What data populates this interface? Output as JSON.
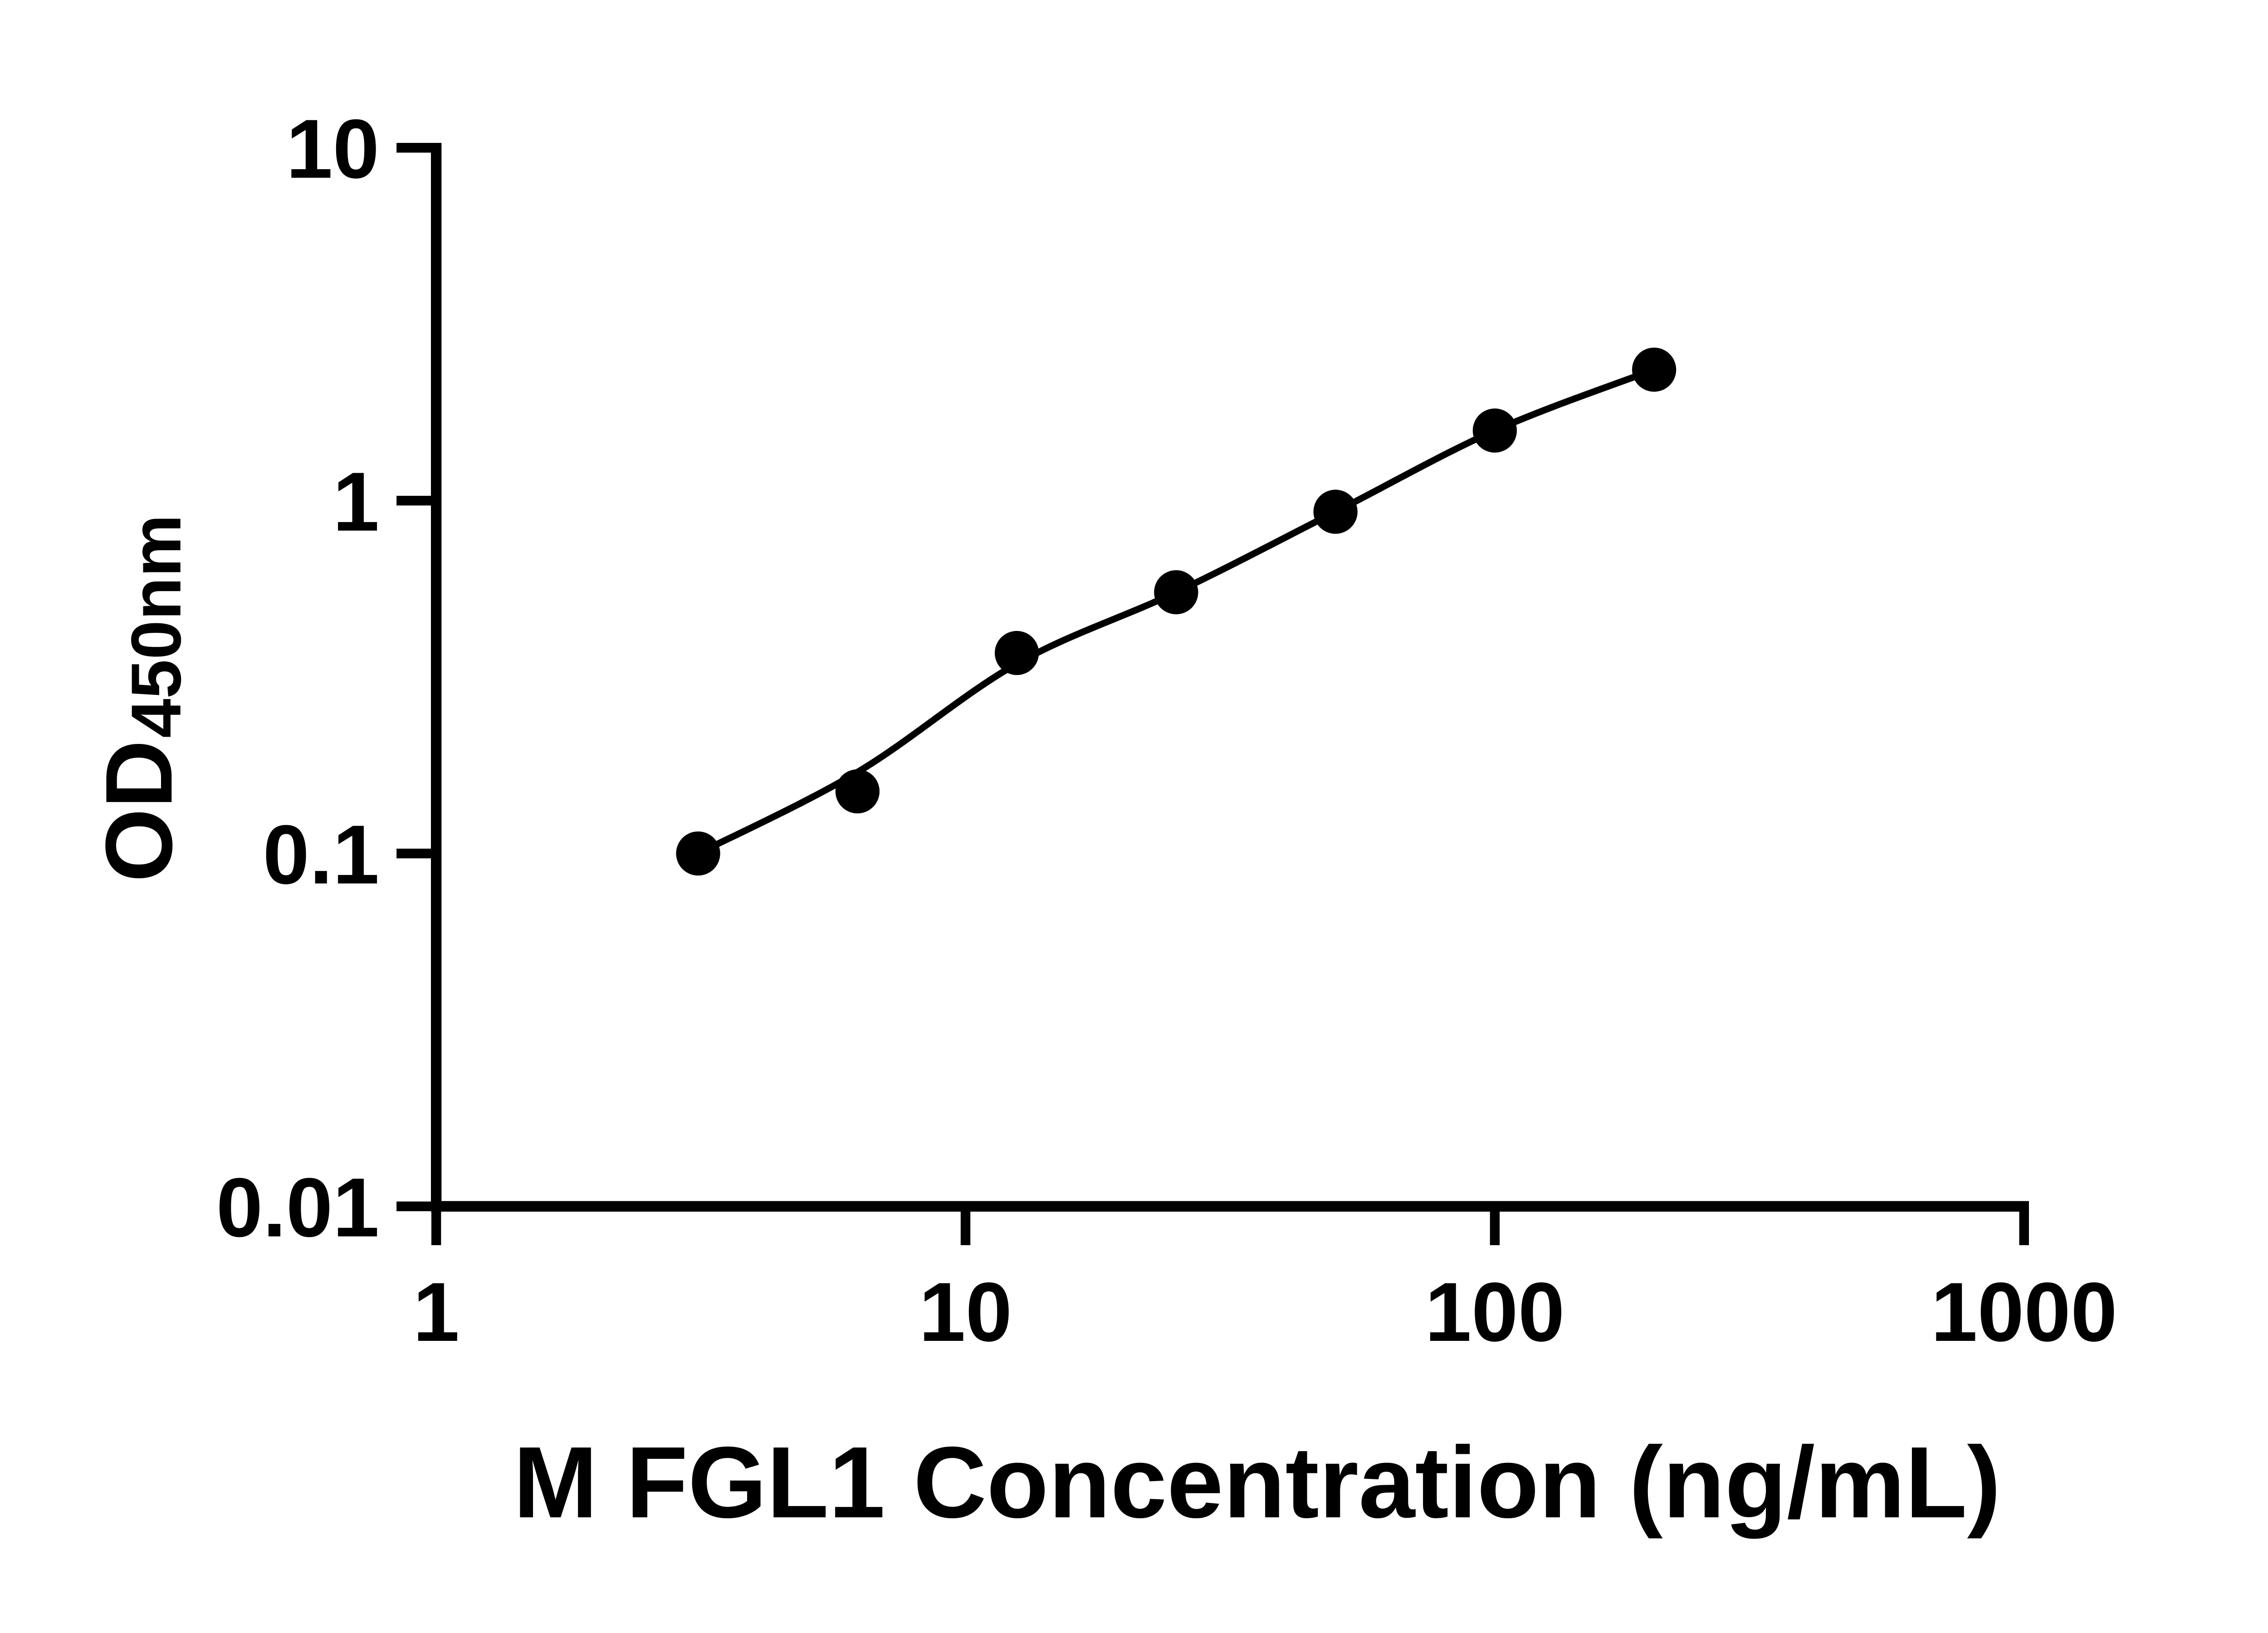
{
  "chart_data": {
    "type": "scatter",
    "title": "",
    "xlabel": "M FGL1 Concentration (ng/mL)",
    "ylabel": "OD450nm",
    "ylabel_main": "OD",
    "ylabel_sub": "450nm",
    "x_scale": "log10",
    "y_scale": "log10",
    "xlim": [
      1,
      1000
    ],
    "ylim": [
      0.01,
      10
    ],
    "grid": false,
    "legend": false,
    "background_color": "#ffffff",
    "marker_color": "#000000",
    "line_color": "#000000",
    "x_ticks": [
      {
        "value": 1,
        "label": "1"
      },
      {
        "value": 10,
        "label": "10"
      },
      {
        "value": 100,
        "label": "100"
      },
      {
        "value": 1000,
        "label": "1000"
      }
    ],
    "y_ticks": [
      {
        "value": 10,
        "label": "10"
      },
      {
        "value": 1,
        "label": "1"
      },
      {
        "value": 0.1,
        "label": "0.1"
      },
      {
        "value": 0.01,
        "label": "0.01"
      }
    ],
    "series": [
      {
        "name": "standard-points",
        "type": "scatter",
        "points": [
          {
            "x": 3.125,
            "y": 0.1
          },
          {
            "x": 6.25,
            "y": 0.15
          },
          {
            "x": 12.5,
            "y": 0.37
          },
          {
            "x": 25,
            "y": 0.55
          },
          {
            "x": 50,
            "y": 0.93
          },
          {
            "x": 100,
            "y": 1.58
          },
          {
            "x": 200,
            "y": 2.35
          }
        ]
      },
      {
        "name": "fit-curve",
        "type": "line",
        "points": [
          {
            "x": 3.125,
            "y": 0.1
          },
          {
            "x": 6.25,
            "y": 0.17
          },
          {
            "x": 12.5,
            "y": 0.345
          },
          {
            "x": 25,
            "y": 0.55
          },
          {
            "x": 50,
            "y": 0.93
          },
          {
            "x": 100,
            "y": 1.58
          },
          {
            "x": 200,
            "y": 2.35
          }
        ]
      }
    ]
  }
}
